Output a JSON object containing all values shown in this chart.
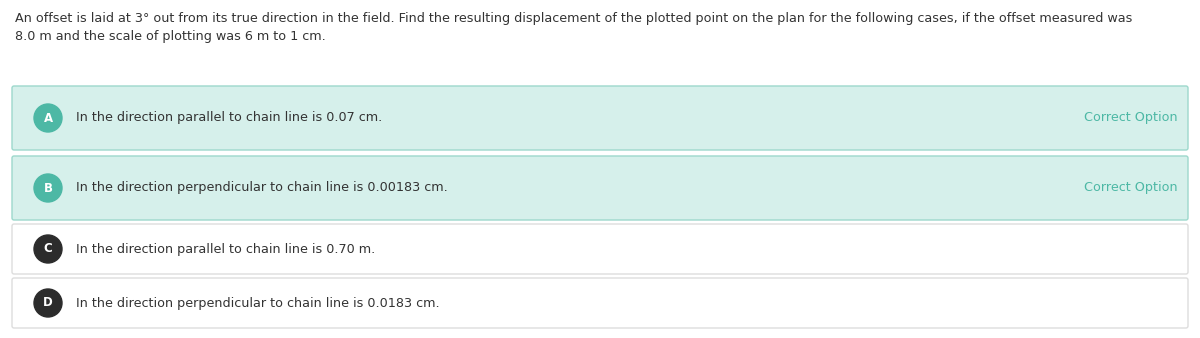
{
  "question_line1": "An offset is laid at 3° out from its true direction in the field. Find the resulting displacement of the plotted point on the plan for the following cases, if the offset measured was",
  "question_line2": "8.0 m and the scale of plotting was 6 m to 1 cm.",
  "options": [
    {
      "label": "A",
      "text": "In the direction parallel to chain line is 0.07 cm.",
      "correct": true,
      "label_bg": "#4db8a5",
      "box_bg": "#d6f0eb",
      "border_color": "#9dd8cc"
    },
    {
      "label": "B",
      "text": "In the direction perpendicular to chain line is 0.00183 cm.",
      "correct": true,
      "label_bg": "#4db8a5",
      "box_bg": "#d6f0eb",
      "border_color": "#9dd8cc"
    },
    {
      "label": "C",
      "text": "In the direction parallel to chain line is 0.70 m.",
      "correct": false,
      "label_bg": "#2c2c2c",
      "box_bg": "#ffffff",
      "border_color": "#dddddd"
    },
    {
      "label": "D",
      "text": "In the direction perpendicular to chain line is 0.0183 cm.",
      "correct": false,
      "label_bg": "#2c2c2c",
      "box_bg": "#ffffff",
      "border_color": "#dddddd"
    }
  ],
  "correct_label": "Correct Option",
  "correct_label_color": "#4db8a5",
  "background_color": "#ffffff",
  "fig_width": 12.0,
  "fig_height": 3.38,
  "dpi": 100
}
